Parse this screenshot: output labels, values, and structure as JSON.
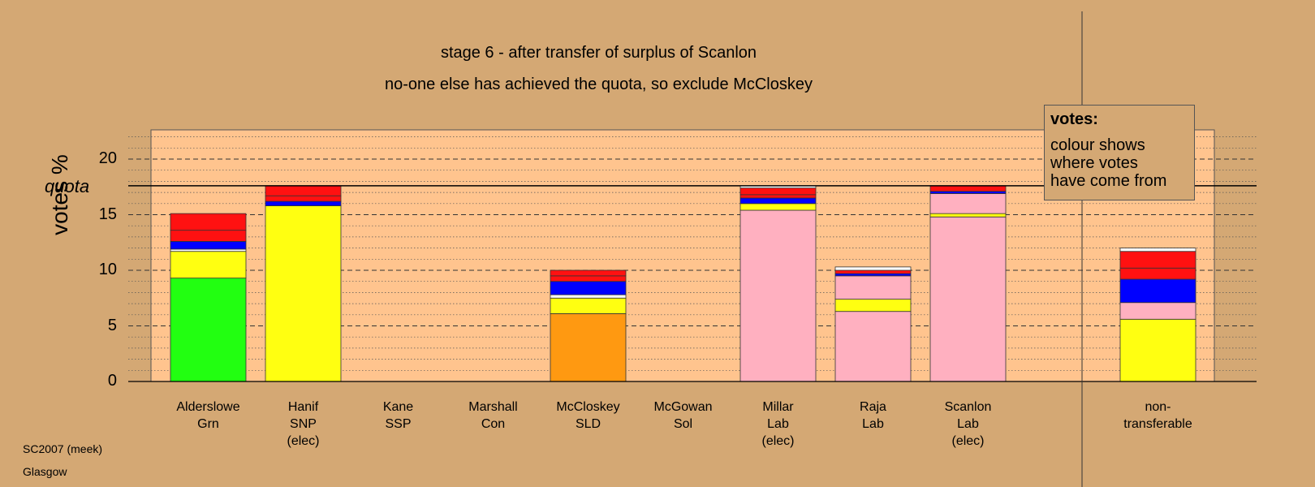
{
  "header": {
    "title": "stage 6 - after transfer of surplus of Scanlon",
    "subtitle": "no-one else has achieved the quota, so exclude McCloskey"
  },
  "legend": {
    "title": "votes:",
    "line1": "colour shows",
    "line2": "where votes",
    "line3": "have come from"
  },
  "footer": {
    "line1": "SC2007 (meek)",
    "line2": "Glasgow"
  },
  "chart_data": {
    "type": "bar",
    "stacked": true,
    "ylabel": "votes %",
    "ylim": [
      0,
      22
    ],
    "yticks": [
      0,
      5,
      10,
      15,
      20
    ],
    "grid": "dotted minor, dashed major",
    "quota": 17.6,
    "quota_label": "quota",
    "colors": {
      "green": "#22FF11",
      "yellow": "#FFFF11",
      "blue": "#0000FF",
      "red": "#FF1111",
      "orange": "#FF9911",
      "pink": "#FFB0C0",
      "white": "#FFFFFF"
    },
    "candidates": [
      {
        "line1": "Alderslowe",
        "line2": "Grn",
        "line3": "",
        "segments": [
          {
            "color": "green",
            "value": 9.3
          },
          {
            "color": "yellow",
            "value": 2.4
          },
          {
            "color": "white",
            "value": 0.2
          },
          {
            "color": "blue",
            "value": 0.7
          },
          {
            "color": "red",
            "value": 1.0
          },
          {
            "color": "red",
            "value": 1.5
          }
        ]
      },
      {
        "line1": "Hanif",
        "line2": "SNP",
        "line3": "(elec)",
        "segments": [
          {
            "color": "yellow",
            "value": 15.8
          },
          {
            "color": "blue",
            "value": 0.4
          },
          {
            "color": "red",
            "value": 0.5
          },
          {
            "color": "red",
            "value": 0.9
          }
        ]
      },
      {
        "line1": "Kane",
        "line2": "SSP",
        "line3": "",
        "segments": []
      },
      {
        "line1": "Marshall",
        "line2": "Con",
        "line3": "",
        "segments": []
      },
      {
        "line1": "McCloskey",
        "line2": "SLD",
        "line3": "",
        "segments": [
          {
            "color": "orange",
            "value": 6.1
          },
          {
            "color": "yellow",
            "value": 1.4
          },
          {
            "color": "white",
            "value": 0.3
          },
          {
            "color": "blue",
            "value": 1.2
          },
          {
            "color": "red",
            "value": 0.5
          },
          {
            "color": "red",
            "value": 0.5
          }
        ]
      },
      {
        "line1": "McGowan",
        "line2": "Sol",
        "line3": "",
        "segments": []
      },
      {
        "line1": "Millar",
        "line2": "Lab",
        "line3": "(elec)",
        "segments": [
          {
            "color": "pink",
            "value": 15.4
          },
          {
            "color": "yellow",
            "value": 0.6
          },
          {
            "color": "blue",
            "value": 0.5
          },
          {
            "color": "red",
            "value": 0.3
          },
          {
            "color": "red",
            "value": 0.6
          },
          {
            "color": "white",
            "value": 0.2
          }
        ]
      },
      {
        "line1": "Raja",
        "line2": "Lab",
        "line3": "",
        "segments": [
          {
            "color": "pink",
            "value": 6.3
          },
          {
            "color": "yellow",
            "value": 1.1
          },
          {
            "color": "pink",
            "value": 2.1
          },
          {
            "color": "blue",
            "value": 0.2
          },
          {
            "color": "red",
            "value": 0.3
          },
          {
            "color": "white",
            "value": 0.3
          }
        ]
      },
      {
        "line1": "Scanlon",
        "line2": "Lab",
        "line3": "(elec)",
        "segments": [
          {
            "color": "pink",
            "value": 14.8
          },
          {
            "color": "yellow",
            "value": 0.3
          },
          {
            "color": "pink",
            "value": 1.8
          },
          {
            "color": "blue",
            "value": 0.2
          },
          {
            "color": "red",
            "value": 0.5
          }
        ]
      },
      {
        "line1": "non-",
        "line2": "transferable",
        "line3": "",
        "segments": [
          {
            "color": "yellow",
            "value": 5.6
          },
          {
            "color": "pink",
            "value": 1.5
          },
          {
            "color": "blue",
            "value": 2.1
          },
          {
            "color": "red",
            "value": 1.0
          },
          {
            "color": "red",
            "value": 1.5
          },
          {
            "color": "white",
            "value": 0.3
          }
        ]
      }
    ]
  }
}
